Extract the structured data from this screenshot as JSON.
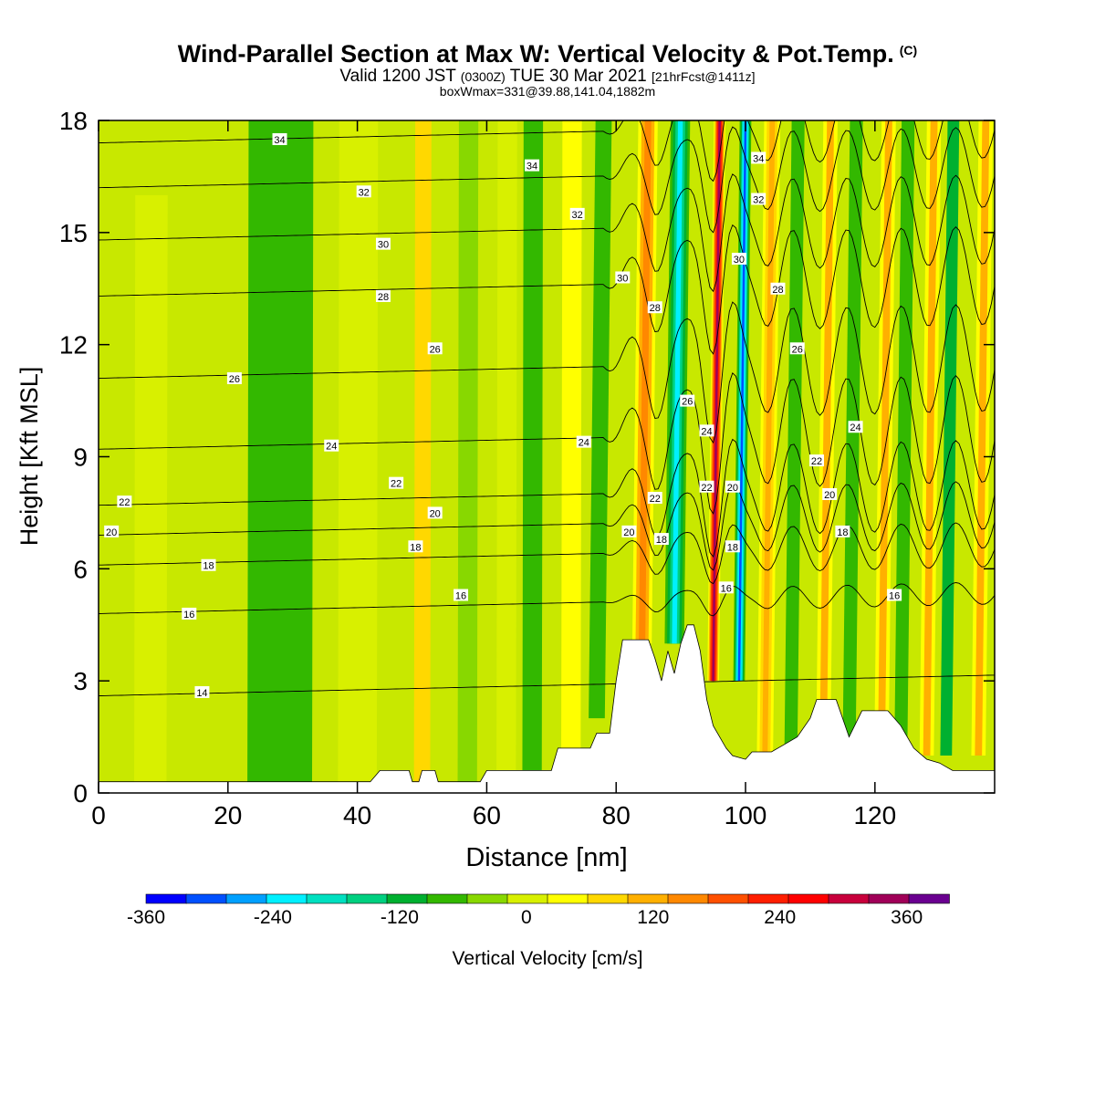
{
  "header": {
    "title": "Wind-Parallel Section at Max W: Vertical Velocity & Pot.Temp.",
    "title_tag": "(C)",
    "subtitle_a": "Valid 1200 JST",
    "subtitle_b": "(0300Z)",
    "subtitle_c": "TUE 30 Mar 2021",
    "subtitle_d": "[21hrFcst@1411z]",
    "subtitle2": "boxWmax=331@39.88,141.04,1882m"
  },
  "chart_data": {
    "type": "heatmap",
    "xlabel": "Distance [nm]",
    "ylabel": "Height [Kft MSL]",
    "xlim": [
      0,
      138.5
    ],
    "ylim": [
      0,
      18
    ],
    "xticks": [
      0,
      20,
      40,
      60,
      80,
      100,
      120
    ],
    "yticks": [
      0,
      3,
      6,
      9,
      12,
      15,
      18
    ],
    "colorbar": {
      "label": "Vertical Velocity [cm/s]",
      "range": [
        -360,
        400
      ],
      "step": 40,
      "tick_values": [
        -360,
        -240,
        -120,
        0,
        120,
        240,
        360
      ],
      "tick_labels": [
        "-360",
        "-240",
        "-120",
        "0",
        "120",
        "240",
        "360"
      ],
      "colors": [
        "#0000ff",
        "#0050ff",
        "#00a0ff",
        "#00f0ff",
        "#00e0c0",
        "#00d080",
        "#00b030",
        "#33b800",
        "#88d800",
        "#d8f000",
        "#ffff00",
        "#ffd800",
        "#ffb000",
        "#ff8800",
        "#ff5000",
        "#ff1e00",
        "#ff0000",
        "#c8003c",
        "#a00058",
        "#6a0090"
      ]
    },
    "velocity_bands": [
      {
        "x": 8,
        "w_bottom": 20,
        "w_top": 10,
        "width": 5,
        "ymin": 0,
        "ymax": 16
      },
      {
        "x": 28,
        "w_bottom": -60,
        "w_top": -80,
        "width": 10,
        "ymin": 0,
        "ymax": 18
      },
      {
        "x": 40,
        "w_bottom": 10,
        "w_top": -30,
        "width": 6,
        "ymin": 0,
        "ymax": 18
      },
      {
        "x": 50,
        "w_bottom": 80,
        "w_top": 20,
        "width": 2.5,
        "ymin": 0,
        "ymax": 18
      },
      {
        "x": 57,
        "w_bottom": -40,
        "w_top": -60,
        "width": 3,
        "ymin": 0,
        "ymax": 18
      },
      {
        "x": 63,
        "w_bottom": 30,
        "w_top": 30,
        "width": 3,
        "ymin": 0,
        "ymax": 18
      },
      {
        "x": 67,
        "w_bottom": -50,
        "w_top": -50,
        "width": 3,
        "ymin": 0,
        "ymax": 18
      },
      {
        "x": 73,
        "w_bottom": 40,
        "w_top": 60,
        "width": 3,
        "ymin": 0,
        "ymax": 18
      },
      {
        "x": 77,
        "w_bottom": -60,
        "w_top": -50,
        "width": 2.5,
        "ymin": 2,
        "ymax": 18
      },
      {
        "x": 84,
        "w_bottom": 160,
        "w_top": 200,
        "width": 3,
        "ymin": 4,
        "ymax": 18
      },
      {
        "x": 89,
        "w_bottom": -200,
        "w_top": -240,
        "width": 3,
        "ymin": 4,
        "ymax": 18
      },
      {
        "x": 95,
        "w_bottom": 380,
        "w_top": 300,
        "width": 1.8,
        "ymin": 3,
        "ymax": 18
      },
      {
        "x": 99,
        "w_bottom": -320,
        "w_top": -260,
        "width": 1.8,
        "ymin": 3,
        "ymax": 18
      },
      {
        "x": 103,
        "w_bottom": 140,
        "w_top": 160,
        "width": 2.5,
        "ymin": 1,
        "ymax": 18
      },
      {
        "x": 107,
        "w_bottom": -80,
        "w_top": -60,
        "width": 2,
        "ymin": 1,
        "ymax": 18
      },
      {
        "x": 112,
        "w_bottom": 120,
        "w_top": 140,
        "width": 2.2,
        "ymin": 1,
        "ymax": 18
      },
      {
        "x": 116,
        "w_bottom": -80,
        "w_top": -70,
        "width": 2,
        "ymin": 1,
        "ymax": 18
      },
      {
        "x": 121,
        "w_bottom": 120,
        "w_top": 140,
        "width": 2.2,
        "ymin": 1,
        "ymax": 18
      },
      {
        "x": 124,
        "w_bottom": -80,
        "w_top": -60,
        "width": 2,
        "ymin": 1,
        "ymax": 18
      },
      {
        "x": 128,
        "w_bottom": 120,
        "w_top": 140,
        "width": 2.2,
        "ymin": 1,
        "ymax": 18
      },
      {
        "x": 131,
        "w_bottom": -100,
        "w_top": -60,
        "width": 1.8,
        "ymin": 1,
        "ymax": 18
      },
      {
        "x": 136,
        "w_bottom": 120,
        "w_top": 120,
        "width": 2.2,
        "ymin": 1,
        "ymax": 18
      }
    ],
    "terrain": [
      [
        0,
        0.3
      ],
      [
        42,
        0.3
      ],
      [
        43.5,
        0.6
      ],
      [
        48,
        0.6
      ],
      [
        48.5,
        0.3
      ],
      [
        49.5,
        0.3
      ],
      [
        50,
        0.6
      ],
      [
        52,
        0.6
      ],
      [
        52.5,
        0.3
      ],
      [
        59,
        0.3
      ],
      [
        60,
        0.6
      ],
      [
        70,
        0.6
      ],
      [
        71,
        1.2
      ],
      [
        76,
        1.2
      ],
      [
        77,
        1.6
      ],
      [
        79,
        1.6
      ],
      [
        80,
        3.0
      ],
      [
        81,
        4.1
      ],
      [
        85,
        4.1
      ],
      [
        86,
        3.6
      ],
      [
        87,
        3.0
      ],
      [
        88,
        3.8
      ],
      [
        89,
        3.2
      ],
      [
        90,
        4.0
      ],
      [
        91,
        4.5
      ],
      [
        92,
        4.5
      ],
      [
        93,
        3.8
      ],
      [
        94,
        2.5
      ],
      [
        95,
        1.8
      ],
      [
        97,
        1.2
      ],
      [
        98,
        1.0
      ],
      [
        100,
        0.9
      ],
      [
        101,
        1.1
      ],
      [
        104,
        1.1
      ],
      [
        106,
        1.3
      ],
      [
        108,
        1.5
      ],
      [
        110,
        2.0
      ],
      [
        111,
        2.5
      ],
      [
        114,
        2.5
      ],
      [
        115,
        2.0
      ],
      [
        116,
        1.5
      ],
      [
        118,
        2.2
      ],
      [
        120,
        2.2
      ],
      [
        122,
        2.2
      ],
      [
        124,
        1.8
      ],
      [
        126,
        1.2
      ],
      [
        128,
        0.9
      ],
      [
        130,
        0.8
      ],
      [
        131,
        0.7
      ],
      [
        132,
        0.6
      ],
      [
        138.5,
        0.6
      ]
    ],
    "theta_contours": [
      {
        "level": 14,
        "y0": 2.6,
        "wave": 0.0
      },
      {
        "level": 16,
        "y0": 4.8,
        "wave": 0.5
      },
      {
        "level": 18,
        "y0": 6.1,
        "wave": 1.0
      },
      {
        "level": 20,
        "y0": 6.9,
        "wave": 1.5
      },
      {
        "level": 22,
        "y0": 7.7,
        "wave": 2.0
      },
      {
        "level": 24,
        "y0": 9.2,
        "wave": 2.4
      },
      {
        "level": 26,
        "y0": 11.1,
        "wave": 2.4
      },
      {
        "level": 28,
        "y0": 13.3,
        "wave": 2.2
      },
      {
        "level": 30,
        "y0": 14.8,
        "wave": 2.0
      },
      {
        "level": 32,
        "y0": 16.2,
        "wave": 1.8
      },
      {
        "level": 34,
        "y0": 17.4,
        "wave": 1.6
      }
    ],
    "contour_labels": [
      {
        "text": "34",
        "x": 28,
        "y": 17.5
      },
      {
        "text": "34",
        "x": 67,
        "y": 16.8
      },
      {
        "text": "32",
        "x": 41,
        "y": 16.1
      },
      {
        "text": "32",
        "x": 74,
        "y": 15.5
      },
      {
        "text": "32",
        "x": 102,
        "y": 15.9
      },
      {
        "text": "34",
        "x": 102,
        "y": 17.0
      },
      {
        "text": "30",
        "x": 44,
        "y": 14.7
      },
      {
        "text": "30",
        "x": 81,
        "y": 13.8
      },
      {
        "text": "30",
        "x": 99,
        "y": 14.3
      },
      {
        "text": "28",
        "x": 44,
        "y": 13.3
      },
      {
        "text": "28",
        "x": 86,
        "y": 13.0
      },
      {
        "text": "28",
        "x": 105,
        "y": 13.5
      },
      {
        "text": "26",
        "x": 21,
        "y": 11.1
      },
      {
        "text": "26",
        "x": 52,
        "y": 11.9
      },
      {
        "text": "26",
        "x": 91,
        "y": 10.5
      },
      {
        "text": "26",
        "x": 108,
        "y": 11.9
      },
      {
        "text": "24",
        "x": 36,
        "y": 9.3
      },
      {
        "text": "24",
        "x": 75,
        "y": 9.4
      },
      {
        "text": "24",
        "x": 94,
        "y": 9.7
      },
      {
        "text": "24",
        "x": 117,
        "y": 9.8
      },
      {
        "text": "22",
        "x": 4,
        "y": 7.8
      },
      {
        "text": "22",
        "x": 46,
        "y": 8.3
      },
      {
        "text": "22",
        "x": 86,
        "y": 7.9
      },
      {
        "text": "22",
        "x": 94,
        "y": 8.2
      },
      {
        "text": "22",
        "x": 111,
        "y": 8.9
      },
      {
        "text": "20",
        "x": 2,
        "y": 7.0
      },
      {
        "text": "20",
        "x": 52,
        "y": 7.5
      },
      {
        "text": "20",
        "x": 82,
        "y": 7.0
      },
      {
        "text": "20",
        "x": 98,
        "y": 8.2
      },
      {
        "text": "20",
        "x": 113,
        "y": 8.0
      },
      {
        "text": "18",
        "x": 17,
        "y": 6.1
      },
      {
        "text": "18",
        "x": 49,
        "y": 6.6
      },
      {
        "text": "18",
        "x": 87,
        "y": 6.8
      },
      {
        "text": "18",
        "x": 98,
        "y": 6.6
      },
      {
        "text": "18",
        "x": 115,
        "y": 7.0
      },
      {
        "text": "16",
        "x": 14,
        "y": 4.8
      },
      {
        "text": "16",
        "x": 56,
        "y": 5.3
      },
      {
        "text": "16",
        "x": 97,
        "y": 5.5
      },
      {
        "text": "16",
        "x": 123,
        "y": 5.3
      },
      {
        "text": "14",
        "x": 16,
        "y": 2.7
      }
    ]
  }
}
